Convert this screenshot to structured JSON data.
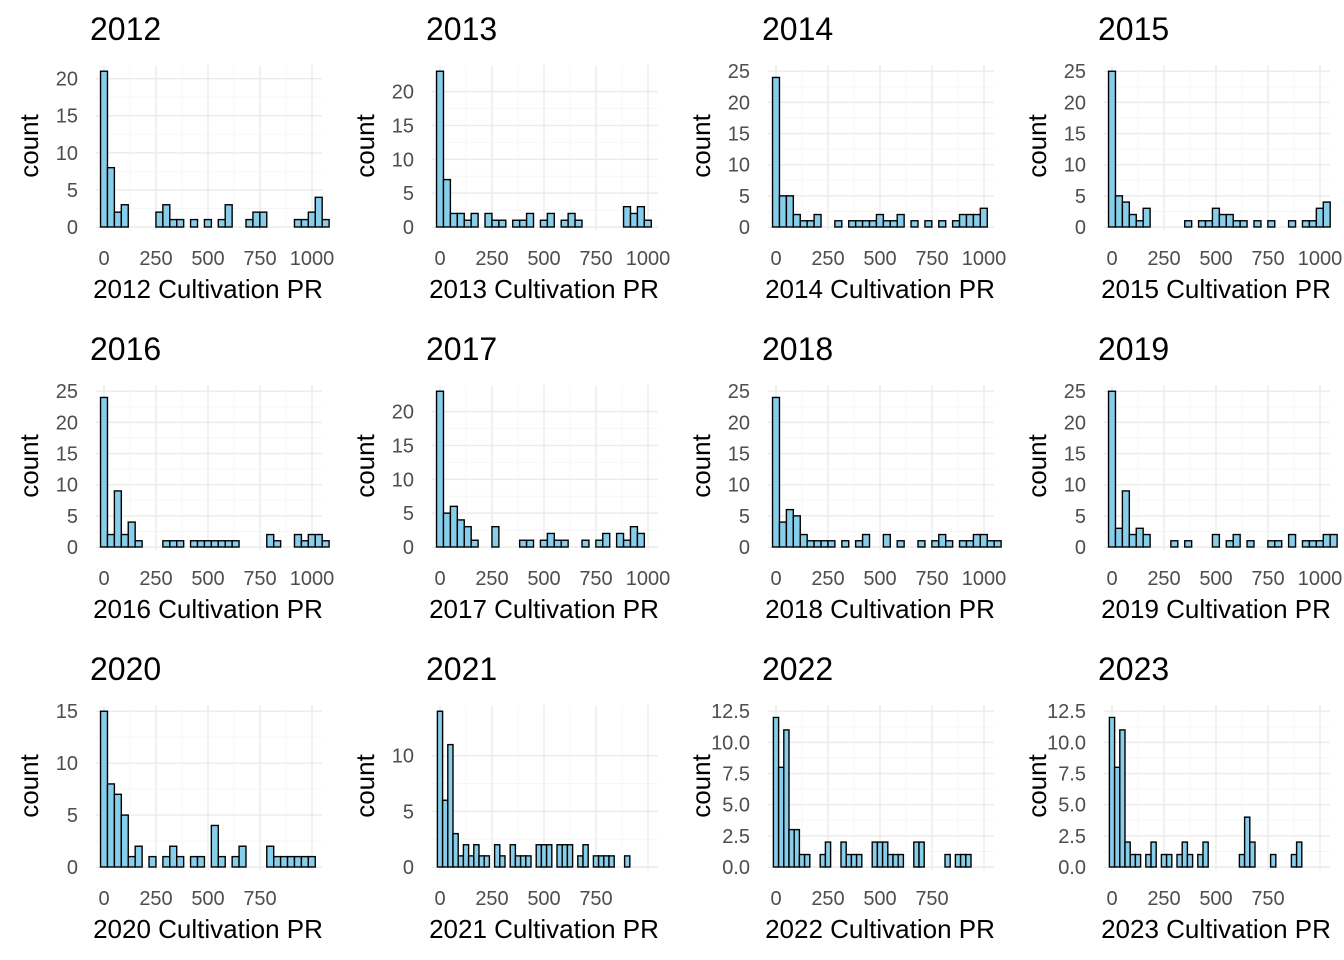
{
  "style": {
    "bar_fill": "#87ceeb",
    "bar_stroke": "#000000"
  },
  "chart_data": [
    {
      "type": "bar",
      "title": "2012",
      "xlabel": "2012 Cultivation PR",
      "ylabel": "count",
      "xlim": [
        -16,
        1016
      ],
      "ylim": [
        0,
        21
      ],
      "xticks": [
        0,
        250,
        500,
        750,
        1000
      ],
      "xtick_labels": [
        "0",
        "250",
        "500",
        "750",
        "1000"
      ],
      "yticks": [
        0,
        5,
        10,
        15,
        20
      ],
      "ytick_labels": [
        "0",
        "5",
        "10",
        "15",
        "20"
      ],
      "bin_width": 33.3,
      "bin_start": 0,
      "counts": [
        21,
        8,
        2,
        3,
        0,
        0,
        0,
        0,
        2,
        3,
        1,
        1,
        0,
        1,
        0,
        1,
        0,
        1,
        3,
        0,
        0,
        1,
        2,
        2,
        0,
        0,
        0,
        0,
        1,
        1,
        2,
        4,
        1
      ]
    },
    {
      "type": "bar",
      "title": "2013",
      "xlabel": "2013 Cultivation PR",
      "ylabel": "count",
      "xlim": [
        -16,
        1016
      ],
      "ylim": [
        0,
        23
      ],
      "xticks": [
        0,
        250,
        500,
        750,
        1000
      ],
      "xtick_labels": [
        "0",
        "250",
        "500",
        "750",
        "1000"
      ],
      "yticks": [
        0,
        5,
        10,
        15,
        20
      ],
      "ytick_labels": [
        "0",
        "5",
        "10",
        "15",
        "20"
      ],
      "bin_width": 33.3,
      "bin_start": 0,
      "counts": [
        23,
        7,
        2,
        2,
        1,
        2,
        0,
        2,
        1,
        1,
        0,
        1,
        1,
        2,
        0,
        1,
        2,
        0,
        1,
        2,
        1,
        0,
        0,
        0,
        0,
        0,
        0,
        3,
        2,
        3,
        1
      ]
    },
    {
      "type": "bar",
      "title": "2014",
      "xlabel": "2014 Cultivation PR",
      "ylabel": "count",
      "xlim": [
        -16,
        1016
      ],
      "ylim": [
        0,
        25
      ],
      "xticks": [
        0,
        250,
        500,
        750,
        1000
      ],
      "xtick_labels": [
        "0",
        "250",
        "500",
        "750",
        "1000"
      ],
      "yticks": [
        0,
        5,
        10,
        15,
        20,
        25
      ],
      "ytick_labels": [
        "0",
        "5",
        "10",
        "15",
        "20",
        "25"
      ],
      "bin_width": 33.3,
      "bin_start": 0,
      "counts": [
        24,
        5,
        5,
        2,
        1,
        1,
        2,
        0,
        0,
        1,
        0,
        1,
        1,
        1,
        1,
        2,
        1,
        1,
        2,
        0,
        1,
        0,
        1,
        0,
        1,
        0,
        1,
        2,
        2,
        2,
        3
      ]
    },
    {
      "type": "bar",
      "title": "2015",
      "xlabel": "2015 Cultivation PR",
      "ylabel": "count",
      "xlim": [
        -16,
        1016
      ],
      "ylim": [
        0,
        25
      ],
      "xticks": [
        0,
        250,
        500,
        750,
        1000
      ],
      "xtick_labels": [
        "0",
        "250",
        "500",
        "750",
        "1000"
      ],
      "yticks": [
        0,
        5,
        10,
        15,
        20,
        25
      ],
      "ytick_labels": [
        "0",
        "5",
        "10",
        "15",
        "20",
        "25"
      ],
      "bin_width": 33.3,
      "bin_start": 0,
      "counts": [
        25,
        5,
        4,
        2,
        1,
        3,
        0,
        0,
        0,
        0,
        0,
        1,
        0,
        1,
        1,
        3,
        2,
        2,
        1,
        1,
        0,
        1,
        0,
        1,
        0,
        0,
        1,
        0,
        1,
        1,
        3,
        4
      ]
    },
    {
      "type": "bar",
      "title": "2016",
      "xlabel": "2016 Cultivation PR",
      "ylabel": "count",
      "xlim": [
        -16,
        1016
      ],
      "ylim": [
        0,
        25
      ],
      "xticks": [
        0,
        250,
        500,
        750,
        1000
      ],
      "xtick_labels": [
        "0",
        "250",
        "500",
        "750",
        "1000"
      ],
      "yticks": [
        0,
        5,
        10,
        15,
        20,
        25
      ],
      "ytick_labels": [
        "0",
        "5",
        "10",
        "15",
        "20",
        "25"
      ],
      "bin_width": 33.3,
      "bin_start": 0,
      "counts": [
        24,
        2,
        9,
        2,
        4,
        1,
        0,
        0,
        0,
        1,
        1,
        1,
        0,
        1,
        1,
        1,
        1,
        1,
        1,
        1,
        0,
        0,
        0,
        0,
        2,
        1,
        0,
        0,
        2,
        1,
        2,
        2,
        1
      ]
    },
    {
      "type": "bar",
      "title": "2017",
      "xlabel": "2017 Cultivation PR",
      "ylabel": "count",
      "xlim": [
        -16,
        1016
      ],
      "ylim": [
        0,
        23
      ],
      "xticks": [
        0,
        250,
        500,
        750,
        1000
      ],
      "xtick_labels": [
        "0",
        "250",
        "500",
        "750",
        "1000"
      ],
      "yticks": [
        0,
        5,
        10,
        15,
        20
      ],
      "ytick_labels": [
        "0",
        "5",
        "10",
        "15",
        "20"
      ],
      "bin_width": 33.3,
      "bin_start": 0,
      "counts": [
        23,
        5,
        6,
        4,
        3,
        1,
        0,
        0,
        3,
        0,
        0,
        0,
        1,
        1,
        0,
        1,
        2,
        1,
        1,
        0,
        0,
        1,
        0,
        1,
        2,
        0,
        2,
        1,
        3,
        2
      ]
    },
    {
      "type": "bar",
      "title": "2018",
      "xlabel": "2018 Cultivation PR",
      "ylabel": "count",
      "xlim": [
        -16,
        1016
      ],
      "ylim": [
        0,
        25
      ],
      "xticks": [
        0,
        250,
        500,
        750,
        1000
      ],
      "xtick_labels": [
        "0",
        "250",
        "500",
        "750",
        "1000"
      ],
      "yticks": [
        0,
        5,
        10,
        15,
        20,
        25
      ],
      "ytick_labels": [
        "0",
        "5",
        "10",
        "15",
        "20",
        "25"
      ],
      "bin_width": 33.3,
      "bin_start": 0,
      "counts": [
        24,
        4,
        6,
        5,
        2,
        1,
        1,
        1,
        1,
        0,
        1,
        0,
        1,
        2,
        0,
        0,
        2,
        0,
        1,
        0,
        0,
        1,
        0,
        1,
        2,
        1,
        0,
        1,
        1,
        2,
        2,
        1,
        1
      ]
    },
    {
      "type": "bar",
      "title": "2019",
      "xlabel": "2019 Cultivation PR",
      "ylabel": "count",
      "xlim": [
        -16,
        1016
      ],
      "ylim": [
        0,
        25
      ],
      "xticks": [
        0,
        250,
        500,
        750,
        1000
      ],
      "xtick_labels": [
        "0",
        "250",
        "500",
        "750",
        "1000"
      ],
      "yticks": [
        0,
        5,
        10,
        15,
        20,
        25
      ],
      "ytick_labels": [
        "0",
        "5",
        "10",
        "15",
        "20",
        "25"
      ],
      "bin_width": 33.3,
      "bin_start": 0,
      "counts": [
        25,
        3,
        9,
        2,
        3,
        2,
        0,
        0,
        0,
        1,
        0,
        1,
        0,
        0,
        0,
        2,
        0,
        1,
        2,
        0,
        1,
        0,
        0,
        1,
        1,
        0,
        2,
        0,
        1,
        1,
        1,
        2,
        2
      ]
    },
    {
      "type": "bar",
      "title": "2020",
      "xlabel": "2020 Cultivation PR",
      "ylabel": "count",
      "xlim": [
        -16,
        1016
      ],
      "ylim": [
        0,
        15
      ],
      "xticks": [
        0,
        250,
        500,
        750
      ],
      "xtick_labels": [
        "0",
        "250",
        "500",
        "750"
      ],
      "yticks": [
        0,
        5,
        10,
        15
      ],
      "ytick_labels": [
        "0",
        "5",
        "10",
        "15"
      ],
      "bin_width": 33.3,
      "bin_start": 0,
      "counts": [
        15,
        8,
        7,
        5,
        1,
        2,
        0,
        1,
        0,
        1,
        2,
        1,
        0,
        1,
        1,
        0,
        4,
        1,
        0,
        1,
        2,
        0,
        0,
        0,
        2,
        1,
        1,
        1,
        1,
        1,
        1
      ]
    },
    {
      "type": "bar",
      "title": "2021",
      "xlabel": "2021 Cultivation PR",
      "ylabel": "count",
      "xlim": [
        -16,
        1016
      ],
      "ylim": [
        0,
        14
      ],
      "xticks": [
        0,
        250,
        500,
        750
      ],
      "xtick_labels": [
        "0",
        "250",
        "500",
        "750"
      ],
      "yticks": [
        0,
        5,
        10
      ],
      "ytick_labels": [
        "0",
        "5",
        "10"
      ],
      "bin_width": 25,
      "bin_start": 0,
      "counts": [
        14,
        6,
        11,
        3,
        1,
        2,
        1,
        2,
        1,
        1,
        0,
        2,
        1,
        0,
        2,
        1,
        1,
        1,
        0,
        2,
        2,
        2,
        0,
        2,
        2,
        2,
        0,
        1,
        2,
        0,
        1,
        1,
        1,
        1,
        0,
        0,
        1
      ]
    },
    {
      "type": "bar",
      "title": "2022",
      "xlabel": "2022 Cultivation PR",
      "ylabel": "count",
      "xlim": [
        -16,
        1016
      ],
      "ylim": [
        0,
        12.5
      ],
      "xticks": [
        0,
        250,
        500,
        750
      ],
      "xtick_labels": [
        "0",
        "250",
        "500",
        "750"
      ],
      "yticks": [
        0,
        2.5,
        5,
        7.5,
        10,
        12.5
      ],
      "ytick_labels": [
        "0.0",
        "2.5",
        "5.0",
        "7.5",
        "10.0",
        "12.5"
      ],
      "bin_width": 25,
      "bin_start": 0,
      "counts": [
        12,
        8,
        11,
        3,
        3,
        1,
        1,
        0,
        0,
        1,
        2,
        0,
        0,
        2,
        1,
        1,
        1,
        0,
        0,
        2,
        2,
        2,
        1,
        1,
        1,
        0,
        0,
        2,
        2,
        0,
        0,
        0,
        0,
        1,
        0,
        1,
        1,
        1
      ]
    },
    {
      "type": "bar",
      "title": "2023",
      "xlabel": "2023 Cultivation PR",
      "ylabel": "count",
      "xlim": [
        -16,
        1016
      ],
      "ylim": [
        0,
        12.5
      ],
      "xticks": [
        0,
        250,
        500,
        750
      ],
      "xtick_labels": [
        "0",
        "250",
        "500",
        "750"
      ],
      "yticks": [
        0,
        2.5,
        5,
        7.5,
        10,
        12.5
      ],
      "ytick_labels": [
        "0.0",
        "2.5",
        "5.0",
        "7.5",
        "10.0",
        "12.5"
      ],
      "bin_width": 25,
      "bin_start": 0,
      "counts": [
        12,
        8,
        11,
        2,
        1,
        1,
        0,
        1,
        2,
        0,
        1,
        1,
        0,
        1,
        2,
        1,
        0,
        1,
        2,
        0,
        0,
        0,
        0,
        0,
        0,
        1,
        4,
        2,
        0,
        0,
        0,
        1,
        0,
        0,
        0,
        1,
        2
      ]
    }
  ]
}
